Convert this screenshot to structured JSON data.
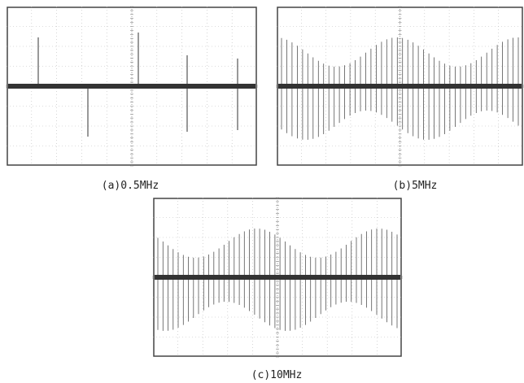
{
  "panels": [
    {
      "caption": "(a)0.5MHz"
    },
    {
      "caption": "(b)5MHz"
    },
    {
      "caption": "(c)10MHz"
    }
  ]
}
